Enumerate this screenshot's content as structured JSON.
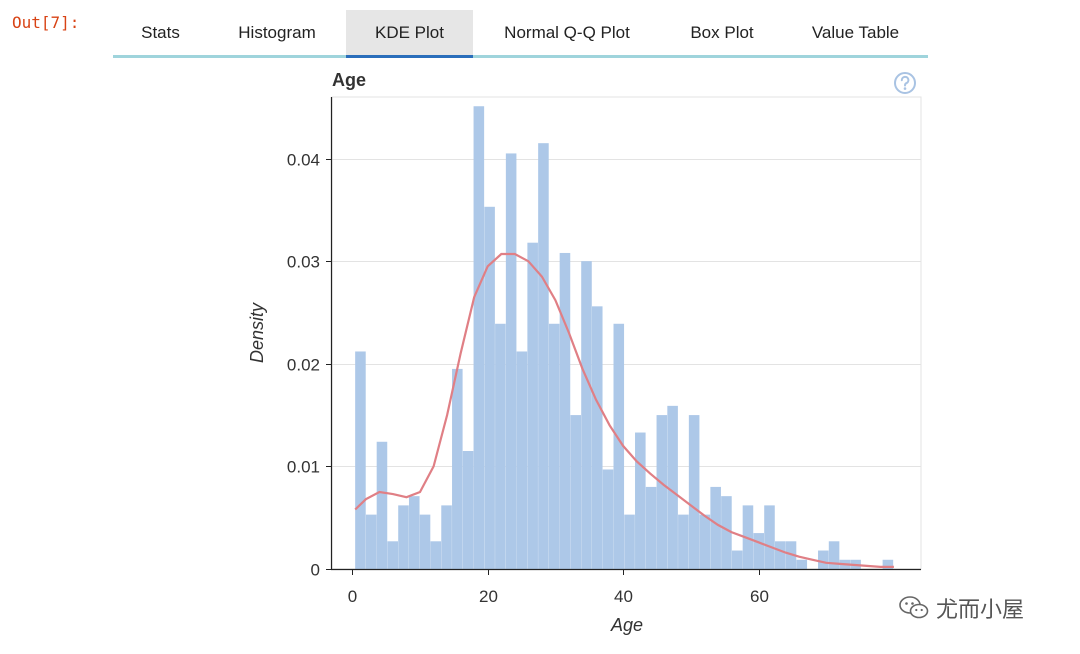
{
  "notebook": {
    "out_prompt": "Out[7]:"
  },
  "tabs": [
    {
      "label": "Stats",
      "active": false
    },
    {
      "label": "Histogram",
      "active": false
    },
    {
      "label": "KDE Plot",
      "active": true
    },
    {
      "label": "Normal Q-Q Plot",
      "active": false
    },
    {
      "label": "Box Plot",
      "active": false
    },
    {
      "label": "Value Table",
      "active": false
    }
  ],
  "help_icon": "question-circle-icon",
  "watermark": {
    "text": "尤而小屋",
    "icon": "wechat-icon"
  },
  "colors": {
    "bars": "#adc8e8",
    "kde": "#e07f85",
    "tab_active_underline": "#2a6ebb",
    "tab_bar_line": "#9fd4dc",
    "prompt": "#d84315"
  },
  "chart_data": {
    "type": "bar",
    "title": "Age",
    "xlabel": "Age",
    "ylabel": "Density",
    "xlim": [
      -3,
      84
    ],
    "ylim": [
      0,
      0.046
    ],
    "x_ticks": [
      0,
      20,
      40,
      60
    ],
    "x_tick_labels": [
      "0",
      "20",
      "40",
      "60"
    ],
    "y_ticks": [
      0,
      0.01,
      0.02,
      0.03,
      0.04
    ],
    "y_tick_labels": [
      "0",
      "0.01",
      "0.02",
      "0.03",
      "0.04"
    ],
    "grid": true,
    "histogram": {
      "bin_start": 0.42,
      "bin_width": 1.59,
      "values": [
        0.0212,
        0.0053,
        0.0124,
        0.0027,
        0.0062,
        0.0071,
        0.0053,
        0.0027,
        0.0062,
        0.0195,
        0.0115,
        0.0451,
        0.0353,
        0.0239,
        0.0405,
        0.0212,
        0.0318,
        0.0415,
        0.0239,
        0.0308,
        0.015,
        0.03,
        0.0256,
        0.0097,
        0.0239,
        0.0053,
        0.0133,
        0.008,
        0.015,
        0.0159,
        0.0053,
        0.015,
        0.0053,
        0.008,
        0.0071,
        0.0018,
        0.0062,
        0.0035,
        0.0062,
        0.0027,
        0.0027,
        0.0009,
        0.0,
        0.0018,
        0.0027,
        0.0009,
        0.0009,
        0.0,
        0.0,
        0.0009
      ]
    },
    "kde": {
      "x": [
        0.42,
        2,
        4,
        6,
        8,
        10,
        12,
        14,
        16,
        18,
        20,
        22,
        24,
        26,
        28,
        30,
        32,
        34,
        36,
        38,
        40,
        42,
        44,
        46,
        48,
        50,
        52,
        54,
        56,
        58,
        60,
        62,
        64,
        66,
        68,
        70,
        72,
        74,
        76,
        78,
        80
      ],
      "y": [
        0.0058,
        0.0068,
        0.0075,
        0.0073,
        0.007,
        0.0075,
        0.01,
        0.015,
        0.021,
        0.0265,
        0.0295,
        0.0307,
        0.0307,
        0.03,
        0.0285,
        0.0262,
        0.023,
        0.0195,
        0.0165,
        0.014,
        0.012,
        0.0105,
        0.0093,
        0.0082,
        0.0072,
        0.0062,
        0.0052,
        0.0043,
        0.0036,
        0.0031,
        0.0026,
        0.0021,
        0.0016,
        0.0012,
        0.0009,
        0.0006,
        0.0005,
        0.0004,
        0.0003,
        0.0002,
        0.0002
      ]
    }
  }
}
